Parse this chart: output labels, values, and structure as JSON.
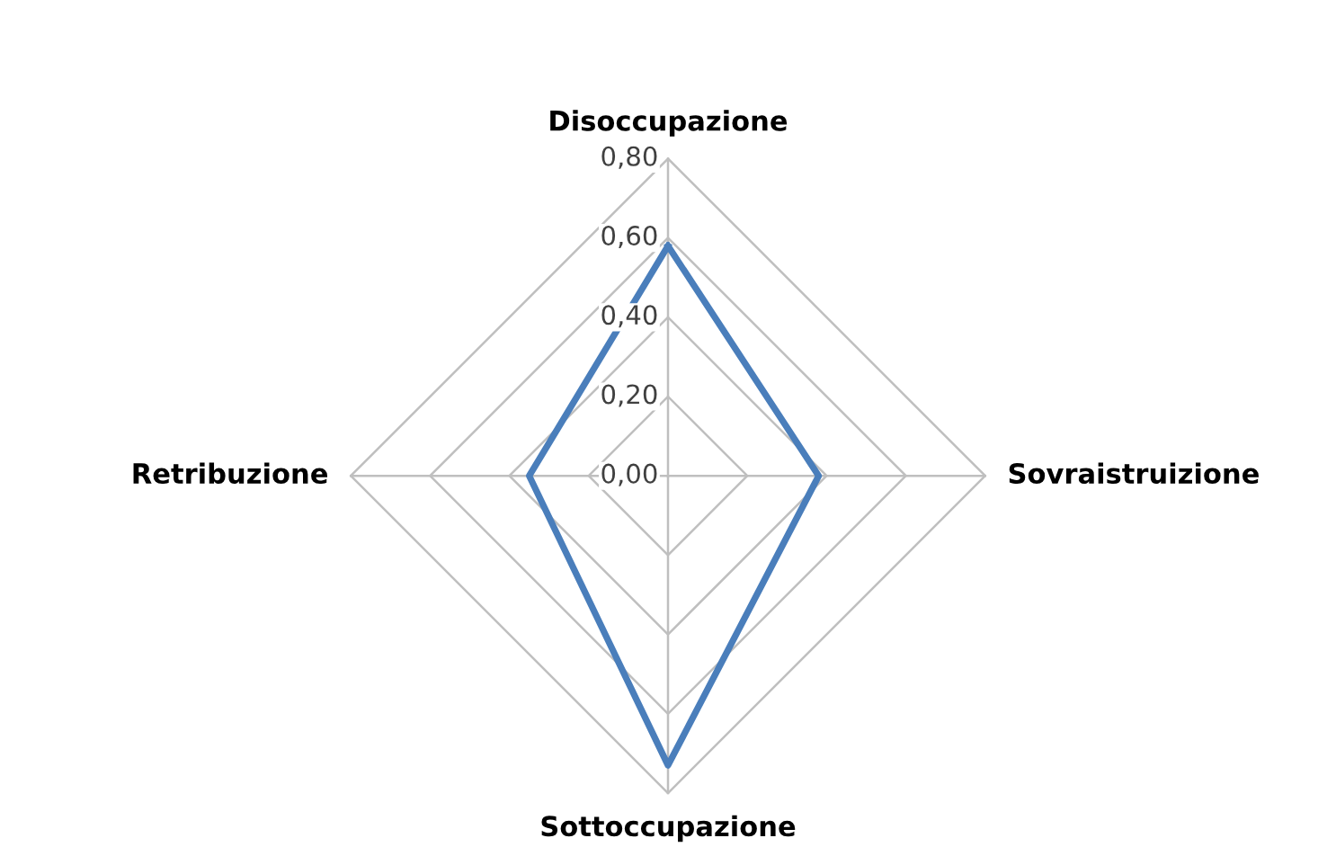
{
  "chart_data": {
    "type": "radar",
    "categories": [
      "Disoccupazione",
      "Sovraistruizione",
      "Sottoccupazione",
      "Retribuzione"
    ],
    "series": [
      {
        "color": "#4a7ebb",
        "values": [
          0.58,
          0.38,
          0.73,
          0.35
        ]
      }
    ],
    "ylim": [
      0,
      0.8
    ],
    "yticks": [
      {
        "value": 0,
        "label": "0,00"
      },
      {
        "value": 0.2,
        "label": "0,20"
      },
      {
        "value": 0.4,
        "label": "0,40"
      },
      {
        "value": 0.6,
        "label": "0,60"
      },
      {
        "value": 0.8,
        "label": "0,80"
      }
    ],
    "grid": true,
    "marker": "none",
    "line_style": "solid"
  }
}
